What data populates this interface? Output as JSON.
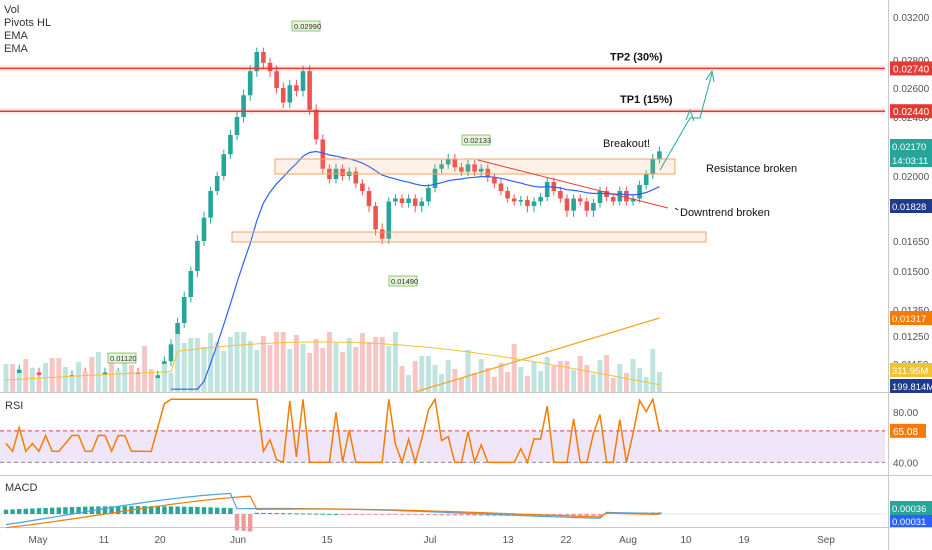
{
  "indicator_labels": [
    "Vol",
    "Pivots HL",
    "EMA",
    "EMA"
  ],
  "rsi_title": "RSI",
  "macd_title": "MACD",
  "colors": {
    "up": "#26a69a",
    "down": "#ef5350",
    "ema_fast": "#2962ff",
    "ema_slow": "#f5a623",
    "vol_ema": "#f1c232",
    "rsi": "#f57c00",
    "macd": "#4aa3df",
    "signal": "#f57c00",
    "level": "#e53935",
    "box": "#f4a261",
    "price_tag_last": "#26a69a",
    "price_tag_ema": "#1e3a8a",
    "price_tag_ema2": "#f57c00"
  },
  "chart_data": [
    {
      "type": "candlestick",
      "title": "",
      "x_ticks": [
        "May",
        "11",
        "20",
        "Jun",
        "15",
        "Jul",
        "13",
        "22",
        "Aug",
        "10",
        "19",
        "Sep"
      ],
      "y_ticks": [
        "0.03200",
        "0.02800",
        "0.02600",
        "0.02400",
        "0.02200",
        "0.02000",
        "0.01800",
        "0.01650",
        "0.01500",
        "0.01350",
        "0.01250",
        "0.01150"
      ],
      "last_price": "0.02170",
      "countdown": "14:03:11",
      "ema_value": "0.01828",
      "ema_slow_value": "0.01317",
      "volume_value": "311.95M",
      "volume_ema_value": "199.814M",
      "levels": [
        {
          "price": "0.02740",
          "label": "TP2 (30%)"
        },
        {
          "price": "0.02440",
          "label": "TP1 (15%)"
        }
      ],
      "pivots": [
        "0.02990",
        "0.02133",
        "0.01490",
        "0.01120"
      ],
      "annotations": [
        "Breakout!",
        "Resistance broken",
        "Downtrend broken"
      ],
      "close": [
        0.0112,
        0.0111,
        0.0113,
        0.0112,
        0.0112,
        0.0111,
        0.0112,
        0.0111,
        0.011,
        0.011,
        0.0111,
        0.0112,
        0.0111,
        0.011,
        0.0111,
        0.0112,
        0.0111,
        0.0112,
        0.0113,
        0.0112,
        0.0111,
        0.011,
        0.0109,
        0.0111,
        0.0116,
        0.0122,
        0.013,
        0.014,
        0.015,
        0.0165,
        0.0175,
        0.019,
        0.02,
        0.0215,
        0.0228,
        0.024,
        0.0255,
        0.0272,
        0.0288,
        0.0278,
        0.0272,
        0.026,
        0.025,
        0.0262,
        0.0258,
        0.0272,
        0.0245,
        0.0225,
        0.0205,
        0.0198,
        0.0205,
        0.02,
        0.0203,
        0.0195,
        0.019,
        0.018,
        0.017,
        0.0166,
        0.0183,
        0.0185,
        0.0182,
        0.0185,
        0.018,
        0.0183,
        0.0192,
        0.0205,
        0.0208,
        0.0212,
        0.0206,
        0.0203,
        0.0208,
        0.0203,
        0.0205,
        0.0199,
        0.0195,
        0.019,
        0.0185,
        0.0183,
        0.0184,
        0.018,
        0.0183,
        0.0186,
        0.0196,
        0.019,
        0.0185,
        0.0178,
        0.0185,
        0.0183,
        0.0178,
        0.0182,
        0.019,
        0.0186,
        0.0183,
        0.019,
        0.0183,
        0.0185,
        0.0194,
        0.0201,
        0.0212,
        0.0217
      ],
      "rsi_levels": [
        40,
        65,
        80
      ],
      "rsi_last": "65.08",
      "rsi_y_ticks": [
        "80.00",
        "40.00"
      ],
      "macd_last": "0.00036",
      "macd_signal_last": "0.00031"
    }
  ]
}
